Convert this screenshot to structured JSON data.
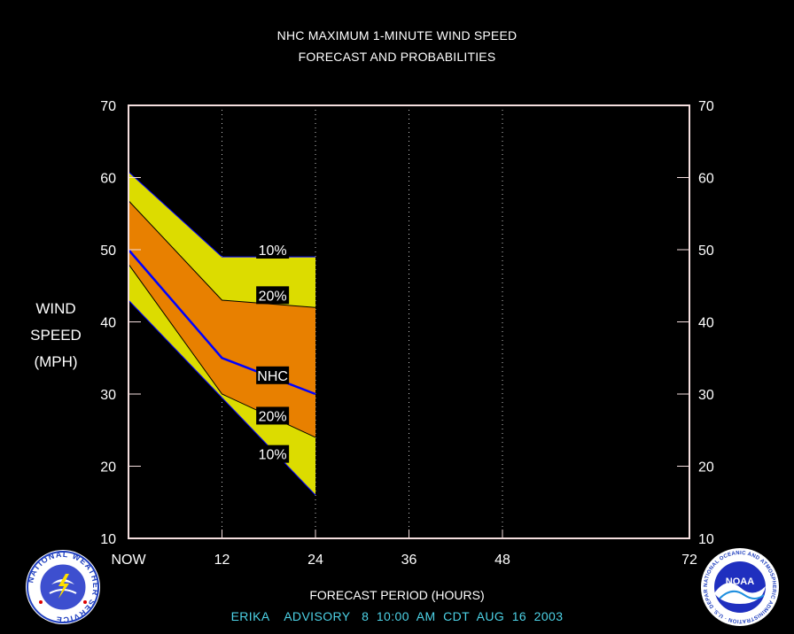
{
  "colors": {
    "background": "#000000",
    "frame": "#f4dede",
    "outer_band": "#dcdc00",
    "inner_band": "#e88000",
    "forecast_line": "#0000ff",
    "advisory_text": "#4dd2e6",
    "grid": "#cccccc"
  },
  "header": {
    "title": "NHC MAXIMUM 1-MINUTE WIND SPEED",
    "subtitle": "FORECAST AND PROBABILITIES"
  },
  "footer": {
    "advisory": "ERIKA    ADVISORY   8  10:00  AM  CDT  AUG  16  2003"
  },
  "logos": {
    "nws": {
      "icon": "nws-seal-icon",
      "text": "NATIONAL WEATHER SERVICE"
    },
    "noaa": {
      "icon": "noaa-seal-icon",
      "text": "NOAA",
      "ring_text": "NATIONAL OCEANIC AND ATMOSPHERIC ADMINISTRATION · U.S. DEPARTMENT OF COMMERCE"
    }
  },
  "chart_data": {
    "type": "area",
    "title": "NHC MAXIMUM 1-MINUTE WIND SPEED",
    "subtitle": "FORECAST AND PROBABILITIES",
    "xlabel": "FORECAST PERIOD (HOURS)",
    "ylabel_lines": [
      "WIND",
      "SPEED",
      "(MPH)"
    ],
    "xlim": [
      0,
      72
    ],
    "ylim": [
      10,
      70
    ],
    "x_ticks": [
      {
        "value": 0,
        "label": "NOW"
      },
      {
        "value": 12,
        "label": "12"
      },
      {
        "value": 24,
        "label": "24"
      },
      {
        "value": 36,
        "label": "36"
      },
      {
        "value": 48,
        "label": "48"
      },
      {
        "value": 72,
        "label": "72"
      }
    ],
    "y_ticks": [
      10,
      20,
      30,
      40,
      50,
      60,
      70
    ],
    "x_gridlines": [
      12,
      24,
      36,
      48
    ],
    "x": [
      0,
      12,
      24
    ],
    "series": [
      {
        "name": "10%",
        "role": "upper_10",
        "values": [
          60.8,
          49,
          49
        ]
      },
      {
        "name": "20%",
        "role": "upper_20",
        "values": [
          56.8,
          43,
          42
        ]
      },
      {
        "name": "NHC",
        "role": "forecast",
        "values": [
          50,
          35,
          30
        ]
      },
      {
        "name": "20%",
        "role": "lower_20",
        "values": [
          48,
          30,
          24
        ]
      },
      {
        "name": "10%",
        "role": "lower_10",
        "values": [
          43,
          29.5,
          16
        ]
      }
    ],
    "annotations": [
      {
        "text": "10%",
        "x": 18.5,
        "y": 50
      },
      {
        "text": "20%",
        "x": 18.5,
        "y": 43.7
      },
      {
        "text": "NHC",
        "x": 18.5,
        "y": 32.6
      },
      {
        "text": "20%",
        "x": 18.5,
        "y": 27
      },
      {
        "text": "10%",
        "x": 18.5,
        "y": 21.7
      }
    ]
  }
}
